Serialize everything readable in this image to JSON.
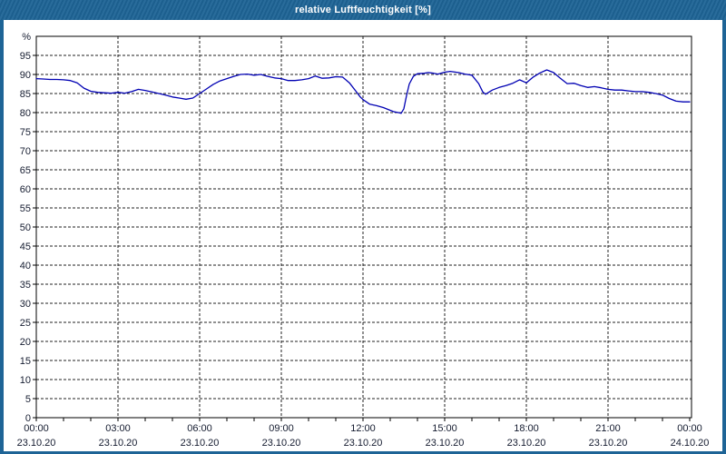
{
  "window": {
    "title": "relative Luftfeuchtigkeit [%]"
  },
  "colors": {
    "titlebar": "#1e6496",
    "title_text": "#ffffff",
    "frame": "#000000",
    "grid": "#222222",
    "tick_text": "#151c30",
    "plot_bg": "#ffffff",
    "line": "#0000b3"
  },
  "chart_data": {
    "type": "line",
    "title": "relative Luftfeuchtigkeit [%]",
    "ylabel": "%",
    "xlabel": "",
    "grid": "dashed",
    "legend": "none",
    "y_axis": {
      "min": 0,
      "max": 100,
      "tick_step": 5,
      "unit_label": "%"
    },
    "x_axis": {
      "hours_min": 0,
      "hours_max": 24,
      "major_step_hours": 3,
      "minor_tick_hours": 1,
      "ticks": [
        {
          "time": "00:00",
          "date": "23.10.20"
        },
        {
          "time": "03:00",
          "date": "23.10.20"
        },
        {
          "time": "06:00",
          "date": "23.10.20"
        },
        {
          "time": "09:00",
          "date": "23.10.20"
        },
        {
          "time": "12:00",
          "date": "23.10.20"
        },
        {
          "time": "15:00",
          "date": "23.10.20"
        },
        {
          "time": "18:00",
          "date": "23.10.20"
        },
        {
          "time": "21:00",
          "date": "23.10.20"
        },
        {
          "time": "00:00",
          "date": "24.10.20"
        }
      ]
    },
    "series": [
      {
        "name": "relative Luftfeuchtigkeit",
        "unit": "%",
        "points_format": [
          "hour_of_day",
          "percent"
        ],
        "points": [
          [
            0,
            88.9
          ],
          [
            0.25,
            88.8
          ],
          [
            0.5,
            88.7
          ],
          [
            0.75,
            88.7
          ],
          [
            1,
            88.6
          ],
          [
            1.25,
            88.4
          ],
          [
            1.5,
            87.8
          ],
          [
            1.75,
            86.4
          ],
          [
            2,
            85.6
          ],
          [
            2.25,
            85.3
          ],
          [
            2.5,
            85.2
          ],
          [
            2.75,
            85.1
          ],
          [
            3,
            85.3
          ],
          [
            3.25,
            85.1
          ],
          [
            3.5,
            85.5
          ],
          [
            3.75,
            86.1
          ],
          [
            4,
            85.8
          ],
          [
            4.25,
            85.4
          ],
          [
            4.5,
            85.0
          ],
          [
            4.75,
            84.6
          ],
          [
            5,
            84.1
          ],
          [
            5.25,
            83.8
          ],
          [
            5.5,
            83.5
          ],
          [
            5.75,
            83.8
          ],
          [
            6,
            85.0
          ],
          [
            6.25,
            86.2
          ],
          [
            6.5,
            87.4
          ],
          [
            6.75,
            88.3
          ],
          [
            7,
            88.9
          ],
          [
            7.25,
            89.5
          ],
          [
            7.5,
            90.0
          ],
          [
            7.75,
            90.1
          ],
          [
            8,
            89.8
          ],
          [
            8.25,
            90.0
          ],
          [
            8.5,
            89.5
          ],
          [
            8.75,
            89.1
          ],
          [
            9,
            88.9
          ],
          [
            9.25,
            88.4
          ],
          [
            9.5,
            88.4
          ],
          [
            9.75,
            88.6
          ],
          [
            10,
            88.9
          ],
          [
            10.25,
            89.6
          ],
          [
            10.5,
            89.0
          ],
          [
            10.75,
            89.1
          ],
          [
            11,
            89.4
          ],
          [
            11.25,
            89.3
          ],
          [
            11.5,
            87.8
          ],
          [
            11.75,
            85.5
          ],
          [
            11.9,
            84.1
          ],
          [
            12,
            83.4
          ],
          [
            12.25,
            82.2
          ],
          [
            12.5,
            81.8
          ],
          [
            12.75,
            81.3
          ],
          [
            13,
            80.6
          ],
          [
            13.15,
            80.2
          ],
          [
            13.3,
            80.0
          ],
          [
            13.4,
            79.8
          ],
          [
            13.5,
            81.0
          ],
          [
            13.6,
            84.5
          ],
          [
            13.7,
            87.5
          ],
          [
            13.85,
            89.5
          ],
          [
            14,
            90.2
          ],
          [
            14.25,
            90.3
          ],
          [
            14.4,
            90.5
          ],
          [
            14.6,
            90.3
          ],
          [
            14.75,
            90.1
          ],
          [
            15,
            90.6
          ],
          [
            15.2,
            90.8
          ],
          [
            15.5,
            90.5
          ],
          [
            15.75,
            90.1
          ],
          [
            16,
            89.8
          ],
          [
            16.25,
            87.6
          ],
          [
            16.4,
            85.4
          ],
          [
            16.5,
            84.8
          ],
          [
            16.75,
            85.9
          ],
          [
            17,
            86.6
          ],
          [
            17.25,
            87.1
          ],
          [
            17.5,
            87.7
          ],
          [
            17.75,
            88.6
          ],
          [
            18,
            87.8
          ],
          [
            18.25,
            89.3
          ],
          [
            18.5,
            90.4
          ],
          [
            18.75,
            91.2
          ],
          [
            19,
            90.5
          ],
          [
            19.25,
            89.0
          ],
          [
            19.5,
            87.6
          ],
          [
            19.75,
            87.7
          ],
          [
            20,
            87.1
          ],
          [
            20.25,
            86.6
          ],
          [
            20.5,
            86.8
          ],
          [
            20.75,
            86.5
          ],
          [
            21,
            86.1
          ],
          [
            21.25,
            85.9
          ],
          [
            21.5,
            85.9
          ],
          [
            21.75,
            85.7
          ],
          [
            22,
            85.5
          ],
          [
            22.25,
            85.5
          ],
          [
            22.5,
            85.3
          ],
          [
            22.75,
            85.0
          ],
          [
            23,
            84.6
          ],
          [
            23.25,
            83.7
          ],
          [
            23.5,
            83.0
          ],
          [
            23.75,
            82.8
          ],
          [
            24,
            82.8
          ]
        ]
      }
    ]
  }
}
